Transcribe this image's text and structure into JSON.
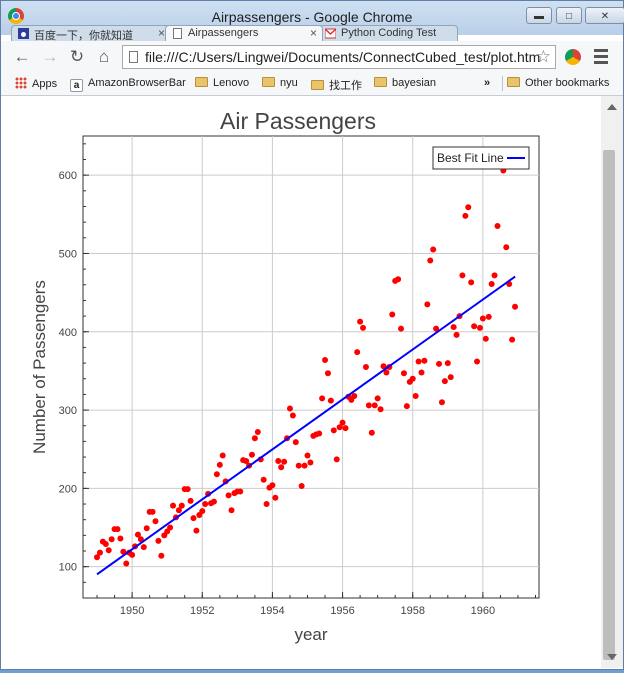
{
  "window": {
    "title": "Airpassengers - Google Chrome"
  },
  "tabs": [
    {
      "label": "百度一下，你就知道",
      "close": "×"
    },
    {
      "label": "Airpassengers",
      "close": "×",
      "active": true
    },
    {
      "label": "Python Coding Test",
      "close": "×"
    }
  ],
  "omnibox": {
    "url": "file:///C:/Users/Lingwei/Documents/ConnectCubed_test/plot.html"
  },
  "bookmarks": {
    "items": [
      "Apps",
      "AmazonBrowserBar",
      "Lenovo",
      "nyu",
      "找工作",
      "bayesian"
    ],
    "overflow": "»",
    "other": "Other bookmarks"
  },
  "chart_data": {
    "type": "scatter",
    "title": "Air Passengers",
    "xlabel": "year",
    "ylabel": "Number of Passengers",
    "xlim": [
      1948.6,
      1961.6
    ],
    "ylim": [
      60,
      650
    ],
    "xticks": [
      "1950",
      "1952",
      "1954",
      "1956",
      "1958",
      "1960"
    ],
    "yticks": [
      "100",
      "200",
      "300",
      "400",
      "500",
      "600"
    ],
    "grid": true,
    "legend": {
      "position": "top-right",
      "entries": [
        "Best Fit Line"
      ]
    },
    "colors": {
      "points": "#ff0000",
      "fit_line": "#0000ff"
    },
    "series": [
      {
        "type": "scatter",
        "x_start": 1949.0,
        "x_step": 0.0833333,
        "values": [
          112,
          118,
          132,
          129,
          121,
          135,
          148,
          148,
          136,
          119,
          104,
          118,
          115,
          126,
          141,
          135,
          125,
          149,
          170,
          170,
          158,
          133,
          114,
          140,
          145,
          150,
          178,
          163,
          172,
          178,
          199,
          199,
          184,
          162,
          146,
          166,
          171,
          180,
          193,
          181,
          183,
          218,
          230,
          242,
          209,
          191,
          172,
          194,
          196,
          196,
          236,
          235,
          229,
          243,
          264,
          272,
          237,
          211,
          180,
          201,
          204,
          188,
          235,
          227,
          234,
          264,
          302,
          293,
          259,
          229,
          203,
          229,
          242,
          233,
          267,
          269,
          270,
          315,
          364,
          347,
          312,
          274,
          237,
          278,
          284,
          277,
          317,
          313,
          318,
          374,
          413,
          405,
          355,
          306,
          271,
          306,
          315,
          301,
          356,
          348,
          355,
          422,
          465,
          467,
          404,
          347,
          305,
          336,
          340,
          318,
          362,
          348,
          363,
          435,
          491,
          505,
          404,
          359,
          310,
          337,
          360,
          342,
          406,
          396,
          420,
          472,
          548,
          559,
          463,
          407,
          362,
          405,
          417,
          391,
          419,
          461,
          472,
          535,
          622,
          606,
          508,
          461,
          390,
          432
        ]
      },
      {
        "name": "Best Fit Line",
        "type": "line",
        "x": [
          1949.0,
          1960.92
        ],
        "values": [
          90.3,
          470.5
        ]
      }
    ]
  }
}
